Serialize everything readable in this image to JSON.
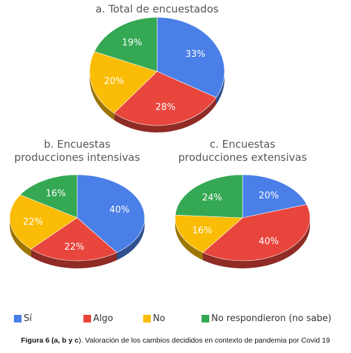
{
  "chart_data": [
    {
      "type": "pie",
      "title": "a. Total de encuestados",
      "categories": [
        "Sí",
        "Algo",
        "No",
        "No respondieron (no sabe)"
      ],
      "values": [
        33,
        28,
        20,
        19
      ],
      "labels": [
        "33%",
        "28%",
        "20%",
        "19%"
      ]
    },
    {
      "type": "pie",
      "title": "b. Encuestas producciones intensivas",
      "title_lines": [
        "b. Encuestas",
        "producciones intensivas"
      ],
      "categories": [
        "Sí",
        "Algo",
        "No",
        "No respondieron (no sabe)"
      ],
      "values": [
        40,
        22,
        22,
        16
      ],
      "labels": [
        "40%",
        "22%",
        "22%",
        "16%"
      ]
    },
    {
      "type": "pie",
      "title": "c. Encuestas producciones extensivas",
      "title_lines": [
        "c. Encuestas",
        "producciones extensivas"
      ],
      "categories": [
        "Sí",
        "Algo",
        "No",
        "No respondieron (no sabe)"
      ],
      "values": [
        20,
        40,
        16,
        24
      ],
      "labels": [
        "20%",
        "40%",
        "16%",
        "24%"
      ]
    }
  ],
  "colors": {
    "Sí": "#4a7fe8",
    "Algo": "#e8453c",
    "No": "#fbbc05",
    "No respondieron (no sabe)": "#34a853"
  },
  "legend": {
    "placement": "bottom",
    "items": [
      "Sí",
      "Algo",
      "No",
      "No respondieron (no sabe)"
    ]
  },
  "caption": {
    "bold": "Figura 6 (a, b y c",
    "rest": "). Valoración de los cambios decididos en contexto de pandemia por Covid 19"
  }
}
